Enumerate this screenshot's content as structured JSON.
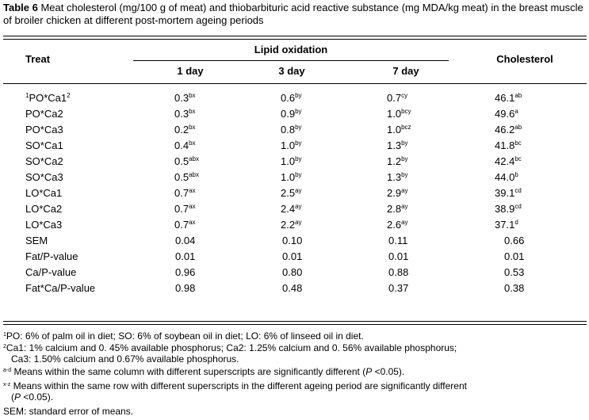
{
  "caption": {
    "label": "Table 6",
    "text": " Meat cholesterol (mg/100 g of meat) and thiobarbituric acid reactive substance (mg MDA/kg meat) in the breast muscle of broiler chicken at different post-mortem ageing periods"
  },
  "headers": {
    "treat": "Treat",
    "lipid": "Lipid oxidation",
    "day1": "1 day",
    "day3": "3 day",
    "day7": "7 day",
    "cholesterol": "Cholesterol"
  },
  "rows": [
    {
      "pre": "1",
      "treat": "PO*Ca1",
      "treat_sup": "2",
      "d1": "0.3",
      "d1s": "bx",
      "d3": "0.6",
      "d3s": "by",
      "d7": "0.7",
      "d7s": "cy",
      "ch": "46.1",
      "chs": "ab"
    },
    {
      "pre": "",
      "treat": "PO*Ca2",
      "treat_sup": "",
      "d1": "0.3",
      "d1s": "bx",
      "d3": "0.9",
      "d3s": "by",
      "d7": "1.0",
      "d7s": "bcy",
      "ch": "49.6",
      "chs": "a"
    },
    {
      "pre": "",
      "treat": "PO*Ca3",
      "treat_sup": "",
      "d1": "0.2",
      "d1s": "bx",
      "d3": "0.8",
      "d3s": "by",
      "d7": "1.0",
      "d7s": "bcz",
      "ch": "46.2",
      "chs": "ab"
    },
    {
      "pre": "",
      "treat": "SO*Ca1",
      "treat_sup": "",
      "d1": "0.4",
      "d1s": "bx",
      "d3": "1.0",
      "d3s": "by",
      "d7": "1.3",
      "d7s": "by",
      "ch": "41.8",
      "chs": "bc"
    },
    {
      "pre": "",
      "treat": "SO*Ca2",
      "treat_sup": "",
      "d1": "0.5",
      "d1s": "abx",
      "d3": "1.0",
      "d3s": "by",
      "d7": "1.2",
      "d7s": "by",
      "ch": "42.4",
      "chs": "bc"
    },
    {
      "pre": "",
      "treat": "SO*Ca3",
      "treat_sup": "",
      "d1": "0.5",
      "d1s": "abx",
      "d3": "1.0",
      "d3s": "by",
      "d7": "1.3",
      "d7s": "by",
      "ch": "44.0",
      "chs": "b"
    },
    {
      "pre": "",
      "treat": "LO*Ca1",
      "treat_sup": "",
      "d1": "0.7",
      "d1s": "ax",
      "d3": "2.5",
      "d3s": "ay",
      "d7": "2.9",
      "d7s": "ay",
      "ch": "39.1",
      "chs": "cd"
    },
    {
      "pre": "",
      "treat": "LO*Ca2",
      "treat_sup": "",
      "d1": "0.7",
      "d1s": "ax",
      "d3": "2.4",
      "d3s": "ay",
      "d7": "2.8",
      "d7s": "ay",
      "ch": "38.9",
      "chs": "cd"
    },
    {
      "pre": "",
      "treat": "LO*Ca3",
      "treat_sup": "",
      "d1": "0.7",
      "d1s": "ax",
      "d3": "2.2",
      "d3s": "ay",
      "d7": "2.6",
      "d7s": "ay",
      "ch": "37.1",
      "chs": "d"
    }
  ],
  "stats": [
    {
      "treat": "SEM",
      "d1": "0.04",
      "d3": "0.10",
      "d7": "0.11",
      "ch": "0.66"
    },
    {
      "treat": "Fat/P-value",
      "d1": "0.01",
      "d3": "0.01",
      "d7": "0.01",
      "ch": "0.01"
    },
    {
      "treat": "Ca/P-value",
      "d1": "0.96",
      "d3": "0.80",
      "d7": "0.88",
      "ch": "0.53"
    },
    {
      "treat": "Fat*Ca/P-value",
      "d1": "0.98",
      "d3": "0.48",
      "d7": "0.37",
      "ch": "0.38"
    }
  ],
  "footnotes": {
    "f1_mark": "1",
    "f1": "PO: 6% of palm oil in diet; SO: 6% of soybean oil in diet; LO: 6% of linseed oil in diet.",
    "f2_mark": "2",
    "f2_line1": "Ca1: 1% calcium and 0. 45% available phosphorus; Ca2: 1.25% calcium and 0. 56% available phosphorus;",
    "f2_line2": "Ca3: 1.50% calcium and 0.67% available phosphorus.",
    "f3_mark": "a-d",
    "f3_text": " Means within the same column with different superscripts are significantly different (",
    "f3_p": "P",
    "f3_end": " <0.05).",
    "f4_mark": "x-z",
    "f4_line1": " Means within the same row with different superscripts in the different ageing period are significantly different",
    "f4_open": "(",
    "f4_p": "P",
    "f4_end": " <0.05).",
    "f5": "SEM: standard error of means."
  }
}
